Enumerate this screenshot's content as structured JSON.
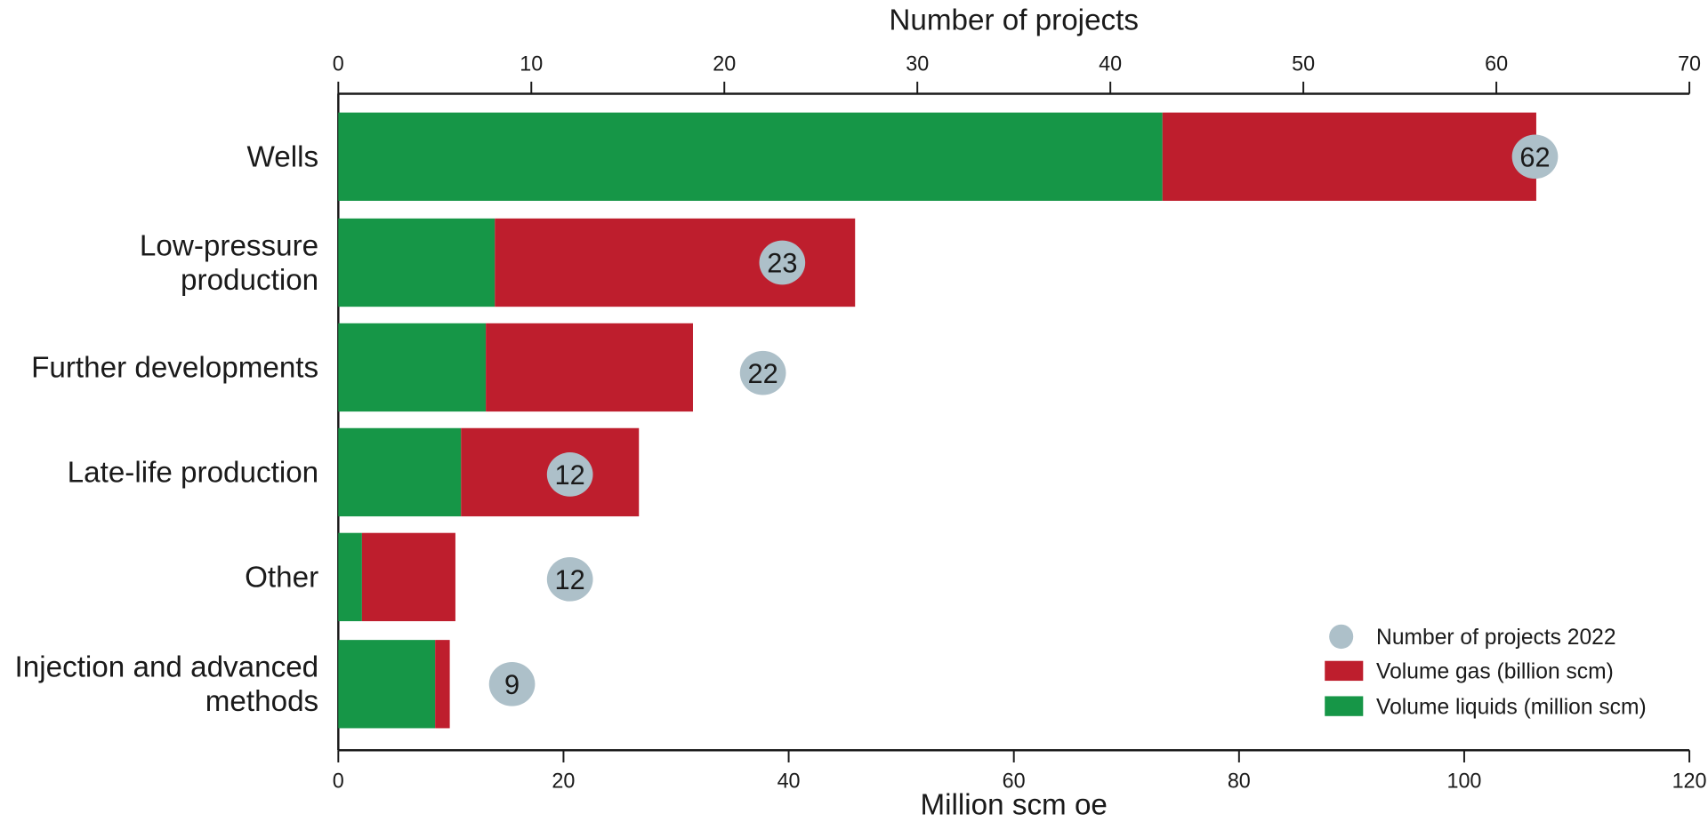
{
  "chart_data": {
    "type": "bar",
    "orientation": "horizontal-stacked-with-markers",
    "title": "",
    "top_axis": {
      "label": "Number of projects",
      "range": [
        0,
        70
      ],
      "ticks": [
        0,
        10,
        20,
        30,
        40,
        50,
        60,
        70
      ]
    },
    "bottom_axis": {
      "label": "Million scm oe",
      "range": [
        0,
        120
      ],
      "ticks": [
        0,
        20,
        40,
        60,
        80,
        100,
        120
      ]
    },
    "categories": [
      [
        "Wells"
      ],
      [
        "Low-pressure",
        "production"
      ],
      [
        "Further developments"
      ],
      [
        "Late-life production"
      ],
      [
        "Other"
      ],
      [
        "Injection and advanced",
        "methods"
      ]
    ],
    "series": [
      {
        "name": "Volume liquids (million scm)",
        "color": "#169647",
        "values": [
          73.2,
          13.9,
          13.1,
          10.9,
          2.1,
          8.6
        ]
      },
      {
        "name": "Volume gas (billion scm)",
        "color": "#BE1E2D",
        "values": [
          33.2,
          32.0,
          18.4,
          15.8,
          8.3,
          1.3
        ]
      },
      {
        "name": "Number of projects 2022",
        "color": "#ADC0C9",
        "marker": "circle",
        "axis": "top",
        "values": [
          62,
          23,
          22,
          12,
          12,
          9
        ]
      }
    ],
    "legend": {
      "position": "bottom-right-inside",
      "items": [
        {
          "label": "Number of projects 2022",
          "shape": "circle",
          "color": "#ADC0C9"
        },
        {
          "label": "Volume gas (billion scm)",
          "shape": "square",
          "color": "#BE1E2D"
        },
        {
          "label": "Volume liquids (million scm)",
          "shape": "square",
          "color": "#169647"
        }
      ]
    },
    "grid": false
  }
}
